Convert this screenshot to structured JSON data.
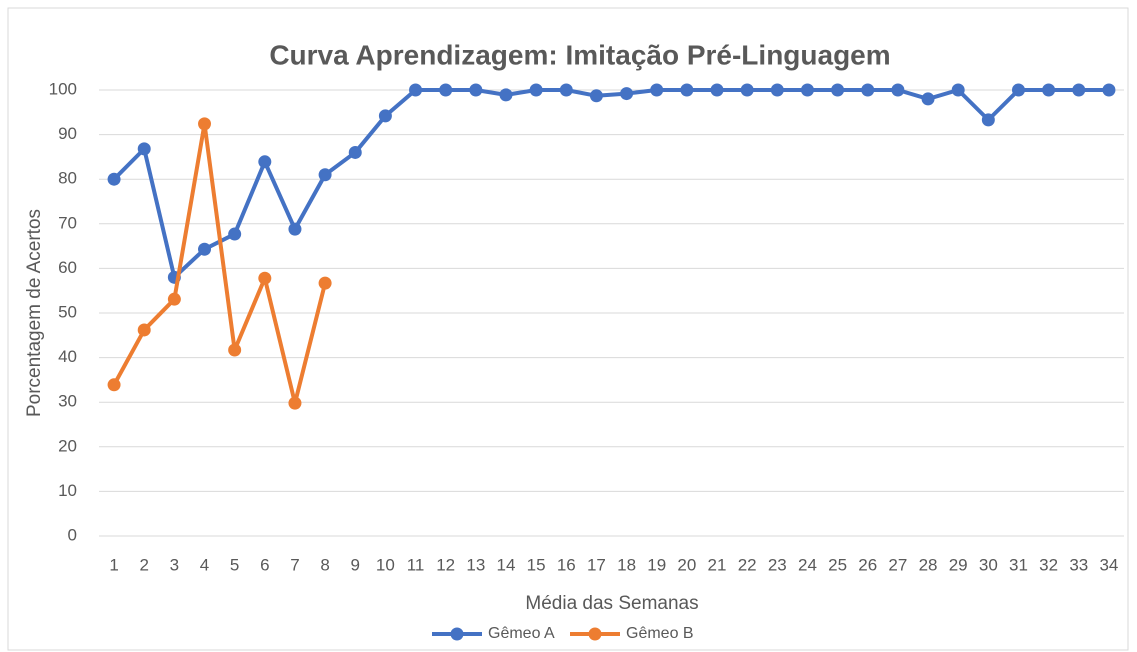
{
  "chart_data": {
    "type": "line",
    "title": "Curva Aprendizagem: Imitação Pré-Linguagem",
    "x_label": "Média das Semanas",
    "y_label": "Porcentagem de Acertos",
    "categories": [
      "1",
      "2",
      "3",
      "4",
      "5",
      "6",
      "7",
      "8",
      "9",
      "10",
      "11",
      "12",
      "13",
      "14",
      "15",
      "16",
      "17",
      "18",
      "19",
      "20",
      "21",
      "22",
      "23",
      "24",
      "25",
      "26",
      "27",
      "28",
      "29",
      "30",
      "31",
      "32",
      "33",
      "34"
    ],
    "series": [
      {
        "name": "Gêmeo A",
        "color": "#4472c4",
        "values": [
          80,
          86.8,
          58,
          64.3,
          67.7,
          83.9,
          68.8,
          81,
          86,
          94.2,
          100,
          100,
          100,
          98.9,
          100,
          100,
          98.7,
          99.2,
          100,
          100,
          100,
          100,
          100,
          100,
          100,
          100,
          100,
          98,
          100,
          93.3,
          100,
          100,
          100,
          100
        ]
      },
      {
        "name": "Gêmeo B",
        "color": "#ed7d31",
        "values": [
          33.9,
          46.2,
          53.1,
          92.4,
          41.7,
          57.8,
          29.8,
          56.7,
          null,
          null,
          null,
          null,
          null,
          null,
          null,
          null,
          null,
          null,
          null,
          null,
          null,
          null,
          null,
          null,
          null,
          null,
          null,
          null,
          null,
          null,
          null,
          null,
          null,
          null
        ]
      }
    ],
    "ylim": [
      0,
      100
    ],
    "yticks": [
      0,
      10,
      20,
      30,
      40,
      50,
      60,
      70,
      80,
      90,
      100
    ],
    "grid": true,
    "legend": "bottom"
  }
}
